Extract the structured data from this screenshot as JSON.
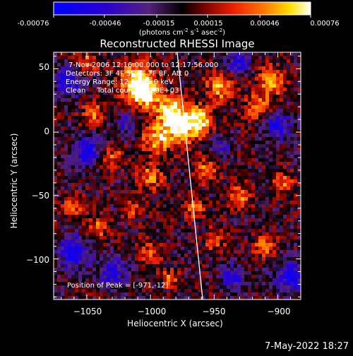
{
  "colorbar": {
    "tick_labels": [
      "-0.00076",
      "-0.00046",
      "-0.00015",
      "0.00015",
      "0.00046",
      "0.00076"
    ],
    "unit_label_main": "(photons cm",
    "unit_sup1": "-2",
    "unit_mid1": " s",
    "unit_sup2": "-1",
    "unit_mid2": " asec",
    "unit_sup3": "-2",
    "unit_end": ")",
    "range": [
      -0.00076,
      0.00076
    ]
  },
  "plot": {
    "title": "Reconstructed RHESSI Image",
    "info_lines": [
      "7-Nov-2006 12:16:00.000 to 12:17:56.000",
      "Detectors: 3F 4F 5F 6F 7F 8F, Att 0",
      "Energy Range: 12.0 - 25.0 keV",
      "Clean     Total counts: 4.60E+03"
    ],
    "peak_label": "Position of Peak = [-971,-12]"
  },
  "chart_data": {
    "type": "heatmap",
    "title": "Reconstructed RHESSI Image",
    "xlabel": "Heliocentric X (arcsec)",
    "ylabel": "Heliocentric Y (arcsec)",
    "xlim": [
      -1076,
      -882
    ],
    "ylim": [
      -132,
      63
    ],
    "x_ticks": [
      -1050,
      -1000,
      -950,
      -900
    ],
    "y_ticks": [
      50,
      0,
      -50,
      -100
    ],
    "x_tick_labels": [
      "−1050",
      "−1000",
      "−950",
      "−900"
    ],
    "y_tick_labels": [
      "50",
      "0",
      "−50",
      "−100"
    ],
    "colorbar_range": [
      -0.00076,
      0.00076
    ],
    "colormap": "blue-purple-red-yellow-white",
    "limb_x_values": [
      -979,
      -959
    ],
    "peak_position": [
      -971,
      -12
    ]
  },
  "footer": {
    "date": "7-May-2022 18:27"
  }
}
